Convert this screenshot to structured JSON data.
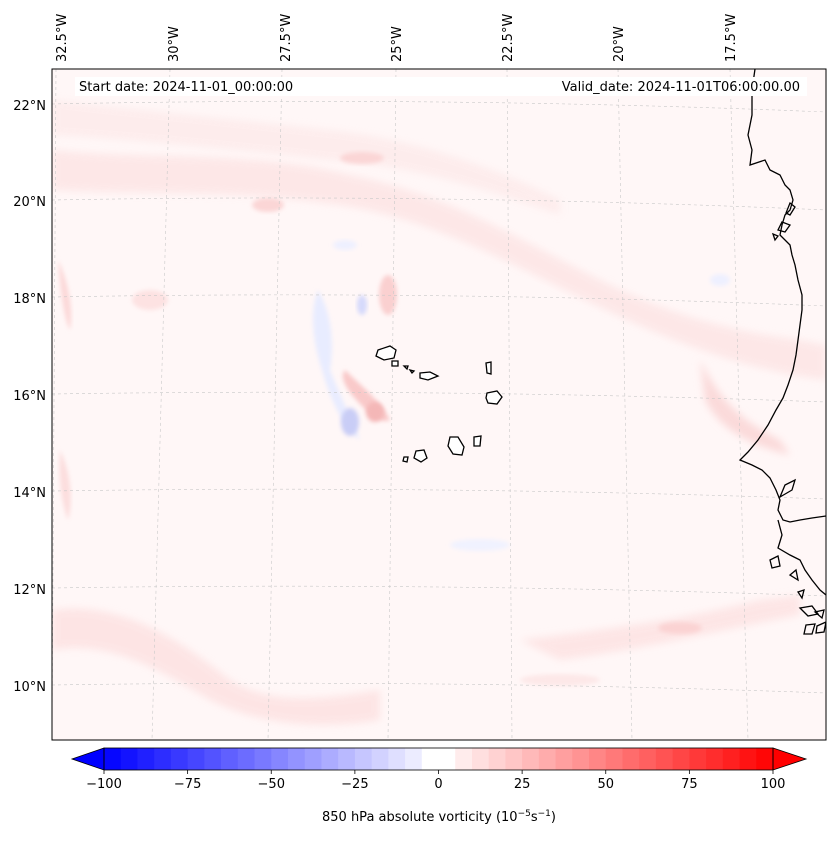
{
  "map": {
    "start_date": "Start date: 2024-11-01_00:00:00",
    "valid_date": "Valid_date: 2024-11-01T06:00:00.00",
    "lon_labels": [
      "32.5°W",
      "30°W",
      "27.5°W",
      "25°W",
      "22.5°W",
      "20°W",
      "17.5°W"
    ],
    "lat_labels": [
      "22°N",
      "20°N",
      "18°N",
      "16°N",
      "14°N",
      "12°N",
      "10°N"
    ],
    "gridlines": true,
    "colors": {
      "negative": "#0000ff",
      "zero": "#ffffff",
      "positive": "#ff0000",
      "coastline": "#000000",
      "gridline": "#c8c8c8"
    }
  },
  "colorbar": {
    "label": "850 hPa absolute vorticity (10$^{-5}$s$^{-1}$)",
    "label_text": "850 hPa absolute vorticity (10",
    "label_sup1": "−5",
    "label_mid": "s",
    "label_sup2": "−1",
    "label_end": ")",
    "min": -100,
    "max": 100,
    "step": 5,
    "tick_values": [
      -100,
      -75,
      -50,
      -25,
      0,
      25,
      50,
      75,
      100
    ],
    "tick_labels": [
      "−100",
      "−75",
      "−50",
      "−25",
      "0",
      "25",
      "50",
      "75",
      "100"
    ],
    "extend": "both"
  }
}
